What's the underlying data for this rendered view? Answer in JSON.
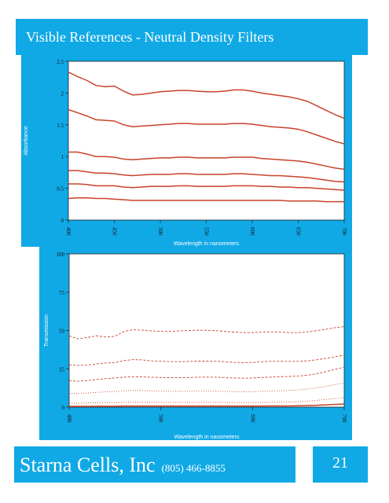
{
  "header": {
    "title": "Visible References - Neutral Density Filters"
  },
  "footer": {
    "company": "Starna Cells, Inc",
    "phone": "(805) 466-8855",
    "page_number": "21"
  },
  "colors": {
    "accent": "#10a9e6",
    "curve": "#c8432b"
  },
  "chart_data": [
    {
      "type": "line",
      "title": "",
      "xlabel": "Wavelength in nanometers",
      "ylabel": "Absorbance",
      "xlim": [
        400,
        700
      ],
      "ylim": [
        0,
        2.5
      ],
      "x_ticks": [
        400,
        450,
        500,
        550,
        600,
        650,
        700
      ],
      "y_ticks": [
        0,
        0.5,
        1,
        1.5,
        2,
        2.5
      ],
      "y_tick_labels": [
        "0",
        "0.5",
        "1",
        "1.5",
        "2",
        "2.5"
      ],
      "grid": false,
      "legend": "none",
      "x": [
        400,
        410,
        420,
        430,
        440,
        450,
        460,
        470,
        480,
        490,
        500,
        510,
        520,
        530,
        540,
        550,
        560,
        570,
        580,
        590,
        600,
        610,
        620,
        630,
        640,
        650,
        660,
        670,
        680,
        690,
        700
      ],
      "series": [
        {
          "style": "solid",
          "values": [
            2.33,
            2.26,
            2.2,
            2.12,
            2.1,
            2.11,
            2.03,
            1.97,
            1.98,
            2.0,
            2.02,
            2.03,
            2.04,
            2.04,
            2.03,
            2.02,
            2.02,
            2.03,
            2.05,
            2.05,
            2.03,
            2.0,
            1.98,
            1.96,
            1.94,
            1.91,
            1.87,
            1.8,
            1.73,
            1.66,
            1.6
          ]
        },
        {
          "style": "solid",
          "values": [
            1.74,
            1.69,
            1.64,
            1.58,
            1.57,
            1.56,
            1.5,
            1.47,
            1.48,
            1.49,
            1.5,
            1.51,
            1.52,
            1.52,
            1.51,
            1.51,
            1.51,
            1.51,
            1.52,
            1.52,
            1.51,
            1.49,
            1.47,
            1.46,
            1.45,
            1.43,
            1.39,
            1.34,
            1.29,
            1.24,
            1.2
          ]
        },
        {
          "style": "solid",
          "values": [
            1.07,
            1.07,
            1.04,
            1.0,
            1.0,
            0.99,
            0.96,
            0.95,
            0.96,
            0.97,
            0.98,
            0.98,
            0.99,
            0.99,
            0.98,
            0.98,
            0.98,
            0.98,
            0.99,
            0.99,
            0.99,
            0.97,
            0.96,
            0.95,
            0.94,
            0.93,
            0.91,
            0.88,
            0.85,
            0.82,
            0.8
          ]
        },
        {
          "style": "solid",
          "values": [
            0.78,
            0.78,
            0.76,
            0.74,
            0.74,
            0.73,
            0.71,
            0.7,
            0.71,
            0.72,
            0.72,
            0.72,
            0.73,
            0.73,
            0.72,
            0.72,
            0.72,
            0.72,
            0.73,
            0.73,
            0.72,
            0.71,
            0.7,
            0.7,
            0.69,
            0.68,
            0.67,
            0.65,
            0.63,
            0.61,
            0.6
          ]
        },
        {
          "style": "solid",
          "values": [
            0.57,
            0.57,
            0.56,
            0.54,
            0.54,
            0.54,
            0.52,
            0.51,
            0.52,
            0.53,
            0.53,
            0.53,
            0.54,
            0.54,
            0.53,
            0.53,
            0.53,
            0.53,
            0.54,
            0.54,
            0.54,
            0.53,
            0.53,
            0.52,
            0.52,
            0.51,
            0.51,
            0.5,
            0.49,
            0.48,
            0.47
          ]
        },
        {
          "style": "solid",
          "values": [
            0.34,
            0.35,
            0.35,
            0.34,
            0.34,
            0.33,
            0.32,
            0.31,
            0.31,
            0.31,
            0.31,
            0.31,
            0.31,
            0.31,
            0.31,
            0.31,
            0.31,
            0.31,
            0.31,
            0.31,
            0.31,
            0.31,
            0.31,
            0.31,
            0.3,
            0.3,
            0.3,
            0.3,
            0.29,
            0.29,
            0.29
          ]
        }
      ]
    },
    {
      "type": "line",
      "title": "",
      "xlabel": "Wavelength in nanometers",
      "ylabel": "Transmission",
      "xlim": [
        400,
        700
      ],
      "ylim": [
        0,
        100
      ],
      "x_ticks": [
        400,
        500,
        600,
        700
      ],
      "y_ticks": [
        0,
        25,
        50,
        75,
        100
      ],
      "y_tick_labels": [
        "0",
        "25",
        "50",
        "75",
        "100"
      ],
      "grid": false,
      "legend": "none",
      "x": [
        400,
        410,
        420,
        430,
        440,
        450,
        460,
        470,
        480,
        490,
        500,
        510,
        520,
        530,
        540,
        550,
        560,
        570,
        580,
        590,
        600,
        610,
        620,
        630,
        640,
        650,
        660,
        670,
        680,
        690,
        700
      ],
      "series": [
        {
          "style": "dashed",
          "values": [
            46.5,
            44.5,
            45.5,
            46.5,
            45.7,
            46.2,
            49.5,
            50.5,
            50.2,
            49.7,
            49.4,
            49.4,
            49.7,
            50.0,
            50.2,
            50.1,
            49.9,
            49.4,
            48.9,
            48.6,
            48.6,
            48.9,
            49.1,
            48.9,
            48.6,
            48.6,
            49.1,
            49.9,
            50.8,
            51.8,
            52.5
          ]
        },
        {
          "style": "dashed",
          "values": [
            27.6,
            27.2,
            27.4,
            28.2,
            28.8,
            29.1,
            30.4,
            31.0,
            30.8,
            30.2,
            29.9,
            29.7,
            29.6,
            29.8,
            30.0,
            30.0,
            29.9,
            29.6,
            29.2,
            29.0,
            29.2,
            29.6,
            29.9,
            29.9,
            29.8,
            29.9,
            30.2,
            30.9,
            31.8,
            32.8,
            33.9
          ]
        },
        {
          "style": "dashed",
          "values": [
            17.2,
            16.9,
            17.3,
            18.0,
            18.6,
            19.0,
            19.6,
            19.8,
            19.7,
            19.5,
            19.3,
            19.2,
            19.2,
            19.3,
            19.5,
            19.6,
            19.5,
            19.3,
            19.0,
            18.9,
            19.0,
            19.3,
            19.6,
            19.8,
            20.0,
            20.3,
            20.8,
            21.8,
            23.1,
            24.6,
            26.1
          ]
        },
        {
          "style": "dotted",
          "values": [
            8.8,
            9.0,
            9.2,
            9.6,
            10.0,
            10.2,
            10.6,
            10.9,
            10.8,
            10.6,
            10.4,
            10.3,
            10.3,
            10.4,
            10.5,
            10.5,
            10.4,
            10.3,
            10.1,
            10.0,
            10.1,
            10.3,
            10.5,
            10.7,
            10.9,
            11.2,
            11.8,
            12.6,
            13.6,
            14.7,
            15.8
          ]
        },
        {
          "style": "dotted",
          "values": [
            2.6,
            2.6,
            2.7,
            2.8,
            2.9,
            3.0,
            3.1,
            3.2,
            3.2,
            3.2,
            3.1,
            3.1,
            3.1,
            3.1,
            3.1,
            3.1,
            3.1,
            3.1,
            3.0,
            3.0,
            3.0,
            3.1,
            3.2,
            3.3,
            3.4,
            3.6,
            3.9,
            4.4,
            5.0,
            5.6,
            6.3
          ]
        },
        {
          "style": "solid",
          "values": [
            0.5,
            0.5,
            0.5,
            0.6,
            0.6,
            0.6,
            0.7,
            0.7,
            0.7,
            0.7,
            0.7,
            0.7,
            0.7,
            0.7,
            0.7,
            0.7,
            0.7,
            0.7,
            0.7,
            0.7,
            0.7,
            0.7,
            0.8,
            0.8,
            0.8,
            0.9,
            1.0,
            1.2,
            1.5,
            1.8,
            2.0
          ]
        }
      ]
    }
  ]
}
